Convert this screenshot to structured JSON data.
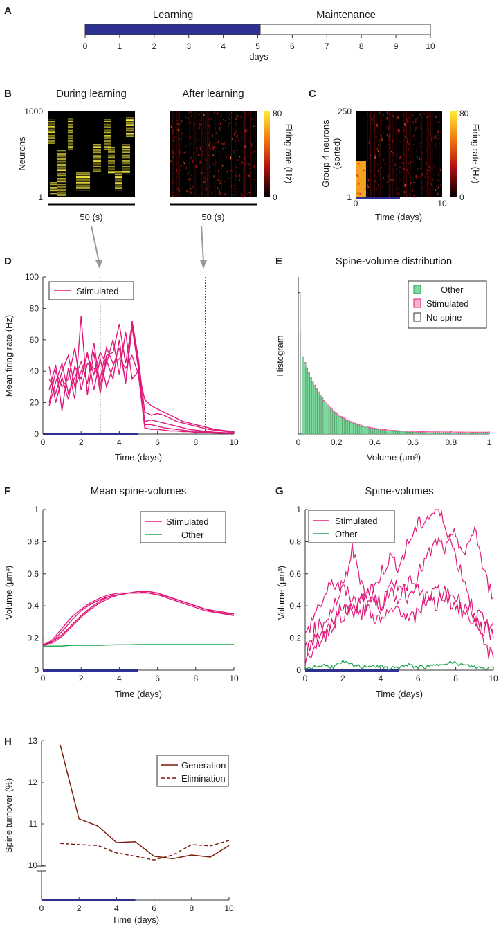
{
  "colors": {
    "stimulated": "#e0197a",
    "other": "#1aa34a",
    "learning_bar": "#2e3192",
    "generation": "#7a1a0a",
    "heatmap_low": "#000000",
    "heatmap_high": "#ffee33"
  },
  "panel_labels": [
    "A",
    "B",
    "C",
    "D",
    "E",
    "F",
    "G",
    "H"
  ],
  "chart_data": [
    {
      "panel": "A",
      "type": "timeline",
      "segments": [
        {
          "label": "Learning",
          "start": 0,
          "end": 5,
          "filled": true
        },
        {
          "label": "Maintenance",
          "start": 5,
          "end": 10,
          "filled": false
        }
      ],
      "ticks": [
        "0",
        "1",
        "2",
        "3",
        "4",
        "5",
        "6",
        "7",
        "8",
        "9",
        "10"
      ],
      "xlabel": "days"
    },
    {
      "panel": "B",
      "type": "heatmap",
      "subplots": [
        {
          "title": "During learning",
          "scale": "50 (s)"
        },
        {
          "title": "After learning",
          "scale": "50 (s)"
        }
      ],
      "ylabel": "Neurons",
      "yticks": [
        "1000",
        "1"
      ],
      "colorbar": {
        "label": "Firing rate (Hz)",
        "ticks": [
          "80",
          "0"
        ],
        "range": [
          0,
          80
        ]
      }
    },
    {
      "panel": "C",
      "type": "heatmap",
      "ylabel": "Group 4 neurons (sorted)",
      "yticks": [
        "250",
        "1"
      ],
      "xticks": [
        "0",
        "10"
      ],
      "xlabel": "Time (days)",
      "colorbar": {
        "label": "Firing rate (Hz)",
        "ticks": [
          "80",
          "0"
        ],
        "range": [
          0,
          80
        ]
      }
    },
    {
      "panel": "D",
      "type": "line",
      "xlabel": "Time (days)",
      "ylabel": "Mean firing rate (Hz)",
      "xlim": [
        0,
        10
      ],
      "ylim": [
        0,
        100
      ],
      "xticks": [
        "0",
        "2",
        "4",
        "6",
        "8",
        "10"
      ],
      "yticks": [
        "0",
        "20",
        "40",
        "60",
        "80",
        "100"
      ],
      "vlines": [
        3,
        8.5
      ],
      "legend": [
        "Stimulated"
      ],
      "x": [
        0.33,
        0.67,
        1,
        1.33,
        1.67,
        2,
        2.33,
        2.67,
        3,
        3.33,
        3.67,
        4,
        4.33,
        4.67,
        5,
        5.33,
        5.67,
        6,
        6.33,
        6.67,
        7,
        7.33,
        7.67,
        8,
        8.33,
        8.67,
        9,
        9.33,
        9.67,
        10
      ],
      "series": [
        {
          "name": "Stimulated 1",
          "values": [
            43,
            20,
            36,
            22,
            43,
            35,
            52,
            28,
            48,
            30,
            43,
            55,
            33,
            72,
            48,
            14,
            12,
            13,
            12,
            10,
            8,
            7,
            6,
            5,
            4,
            3,
            2.5,
            2,
            1.5,
            1
          ]
        },
        {
          "name": "Stimulated 2",
          "values": [
            28,
            44,
            15,
            42,
            22,
            75,
            25,
            52,
            26,
            47,
            35,
            60,
            32,
            68,
            42,
            8,
            9,
            8,
            7,
            6,
            5,
            4,
            3,
            2.5,
            2,
            1.5,
            1.2,
            1,
            0.8,
            0.6
          ]
        },
        {
          "name": "Stimulated 3",
          "values": [
            18,
            33,
            45,
            26,
            36,
            46,
            32,
            58,
            30,
            50,
            52,
            70,
            45,
            70,
            45,
            6,
            6,
            5,
            4,
            3.5,
            3,
            2.5,
            2,
            1.8,
            1.5,
            1.2,
            1,
            0.8,
            0.6,
            0.5
          ]
        },
        {
          "name": "Stimulated 4",
          "values": [
            35,
            26,
            40,
            50,
            30,
            40,
            50,
            38,
            52,
            45,
            60,
            38,
            65,
            35,
            40,
            22,
            18,
            16,
            14,
            12,
            10,
            8,
            7,
            6,
            5,
            4,
            3,
            2.5,
            2,
            1.5
          ]
        },
        {
          "name": "Stimulated 5",
          "values": [
            20,
            40,
            30,
            35,
            55,
            28,
            45,
            42,
            35,
            55,
            45,
            48,
            42,
            50,
            38,
            4,
            3,
            3,
            2.5,
            2,
            2,
            1.5,
            1.5,
            1,
            1,
            0.8,
            0.6,
            0.5,
            0.4,
            0.3
          ]
        }
      ]
    },
    {
      "panel": "E",
      "type": "bar",
      "title": "Spine-volume distribution",
      "xlabel": "Volume (μm³)",
      "ylabel": "Histogram",
      "xlim": [
        0,
        1
      ],
      "xticks": [
        "0",
        "0.2",
        "0.4",
        "0.6",
        "0.8",
        "1"
      ],
      "legend": [
        "Other",
        "Stimulated",
        "No spine"
      ],
      "no_spine": [
        {
          "x": 0.005,
          "v": 0.9
        },
        {
          "x": 0.015,
          "v": 0.65
        }
      ],
      "bin_width": 0.01,
      "other_decay": {
        "peak": 0.48,
        "tau": 0.07,
        "floor": 0.0,
        "start": 0.02
      }
    },
    {
      "panel": "F",
      "type": "line",
      "title": "Mean spine-volumes",
      "xlabel": "Time (days)",
      "ylabel": "Volume (μm³)",
      "xlim": [
        0,
        10
      ],
      "ylim": [
        0,
        1
      ],
      "xticks": [
        "0",
        "2",
        "4",
        "6",
        "8",
        "10"
      ],
      "yticks": [
        "0",
        "0.2",
        "0.4",
        "0.6",
        "0.8",
        "1"
      ],
      "legend": [
        "Stimulated",
        "Other"
      ],
      "x": [
        0,
        0.5,
        1,
        1.5,
        2,
        2.5,
        3,
        3.5,
        4,
        4.5,
        5,
        5.5,
        6,
        6.5,
        7,
        7.5,
        8,
        8.5,
        9,
        9.5,
        10
      ],
      "series": [
        {
          "name": "Stimulated 1",
          "values": [
            0.15,
            0.18,
            0.24,
            0.31,
            0.37,
            0.41,
            0.44,
            0.46,
            0.47,
            0.48,
            0.49,
            0.49,
            0.48,
            0.46,
            0.44,
            0.42,
            0.4,
            0.38,
            0.37,
            0.36,
            0.35
          ]
        },
        {
          "name": "Stimulated 2",
          "values": [
            0.16,
            0.17,
            0.21,
            0.27,
            0.33,
            0.38,
            0.42,
            0.45,
            0.47,
            0.48,
            0.48,
            0.48,
            0.47,
            0.45,
            0.43,
            0.41,
            0.39,
            0.37,
            0.36,
            0.35,
            0.34
          ]
        },
        {
          "name": "Stimulated 3",
          "values": [
            0.15,
            0.19,
            0.26,
            0.33,
            0.38,
            0.42,
            0.45,
            0.47,
            0.48,
            0.48,
            0.49,
            0.48,
            0.47,
            0.46,
            0.44,
            0.42,
            0.4,
            0.38,
            0.37,
            0.35,
            0.34
          ]
        },
        {
          "name": "Stimulated 4",
          "values": [
            0.16,
            0.18,
            0.22,
            0.28,
            0.34,
            0.39,
            0.43,
            0.46,
            0.47,
            0.48,
            0.48,
            0.49,
            0.48,
            0.46,
            0.44,
            0.42,
            0.4,
            0.38,
            0.36,
            0.35,
            0.35
          ]
        },
        {
          "name": "Other",
          "values": [
            0.15,
            0.15,
            0.15,
            0.155,
            0.155,
            0.155,
            0.155,
            0.157,
            0.158,
            0.158,
            0.16,
            0.16,
            0.16,
            0.16,
            0.16,
            0.16,
            0.16,
            0.16,
            0.16,
            0.16,
            0.16
          ]
        }
      ]
    },
    {
      "panel": "G",
      "type": "line",
      "title": "Spine-volumes",
      "xlabel": "Time (days)",
      "ylabel": "Volume (μm³)",
      "xlim": [
        0,
        10
      ],
      "ylim": [
        0,
        1
      ],
      "xticks": [
        "0",
        "2",
        "4",
        "6",
        "8",
        "10"
      ],
      "yticks": [
        "0",
        "0.2",
        "0.4",
        "0.6",
        "0.8",
        "1"
      ],
      "legend": [
        "Stimulated",
        "Other"
      ],
      "x": [
        0,
        0.5,
        1,
        1.5,
        2,
        2.5,
        3,
        3.5,
        4,
        4.5,
        5,
        5.5,
        6,
        6.5,
        7,
        7.5,
        8,
        8.5,
        9,
        9.5,
        10
      ],
      "series": [
        {
          "name": "Stimulated 1",
          "values": [
            0.2,
            0.35,
            0.45,
            0.55,
            0.5,
            0.75,
            0.55,
            0.45,
            0.6,
            0.7,
            0.65,
            0.8,
            0.9,
            0.95,
            1.0,
            0.9,
            0.7,
            0.55,
            0.35,
            0.15,
            0.08
          ]
        },
        {
          "name": "Stimulated 2",
          "values": [
            0.15,
            0.25,
            0.3,
            0.4,
            0.5,
            0.45,
            0.35,
            0.45,
            0.4,
            0.5,
            0.55,
            0.45,
            0.6,
            0.7,
            0.8,
            0.75,
            0.85,
            0.7,
            0.9,
            0.6,
            0.45
          ]
        },
        {
          "name": "Stimulated 3",
          "values": [
            0.1,
            0.2,
            0.25,
            0.3,
            0.35,
            0.4,
            0.45,
            0.35,
            0.3,
            0.35,
            0.4,
            0.3,
            0.35,
            0.45,
            0.5,
            0.45,
            0.4,
            0.35,
            0.3,
            0.25,
            0.3
          ]
        },
        {
          "name": "Stimulated 4",
          "values": [
            0.05,
            0.15,
            0.2,
            0.3,
            0.4,
            0.35,
            0.45,
            0.5,
            0.4,
            0.5,
            0.45,
            0.55,
            0.5,
            0.45,
            0.4,
            0.5,
            0.45,
            0.4,
            0.35,
            0.3,
            0.2
          ]
        },
        {
          "name": "Other",
          "values": [
            0.01,
            0.02,
            0.03,
            0.02,
            0.05,
            0.03,
            0.02,
            0.03,
            0.02,
            0.01,
            0.02,
            0.03,
            0.02,
            0.02,
            0.03,
            0.05,
            0.04,
            0.03,
            0.02,
            0.01,
            0.02
          ]
        }
      ]
    },
    {
      "panel": "H",
      "type": "line",
      "xlabel": "Time (days)",
      "ylabel": "Spine turnover (%)",
      "xlim": [
        0,
        10
      ],
      "ylim": [
        9.8,
        13
      ],
      "xticks": [
        "0",
        "2",
        "4",
        "6",
        "8",
        "10"
      ],
      "yticks": [
        "10",
        "11",
        "12",
        "13"
      ],
      "legend": [
        "Generation",
        "Elimination"
      ],
      "x": [
        1,
        2,
        3,
        4,
        5,
        6,
        7,
        8,
        9,
        10
      ],
      "series": [
        {
          "name": "Generation",
          "values": [
            12.9,
            11.12,
            10.95,
            10.55,
            10.57,
            10.22,
            10.16,
            10.25,
            10.2,
            10.48
          ]
        },
        {
          "name": "Elimination",
          "values": [
            10.53,
            10.5,
            10.48,
            10.3,
            10.22,
            10.13,
            10.25,
            10.5,
            10.47,
            10.6
          ]
        }
      ]
    }
  ]
}
